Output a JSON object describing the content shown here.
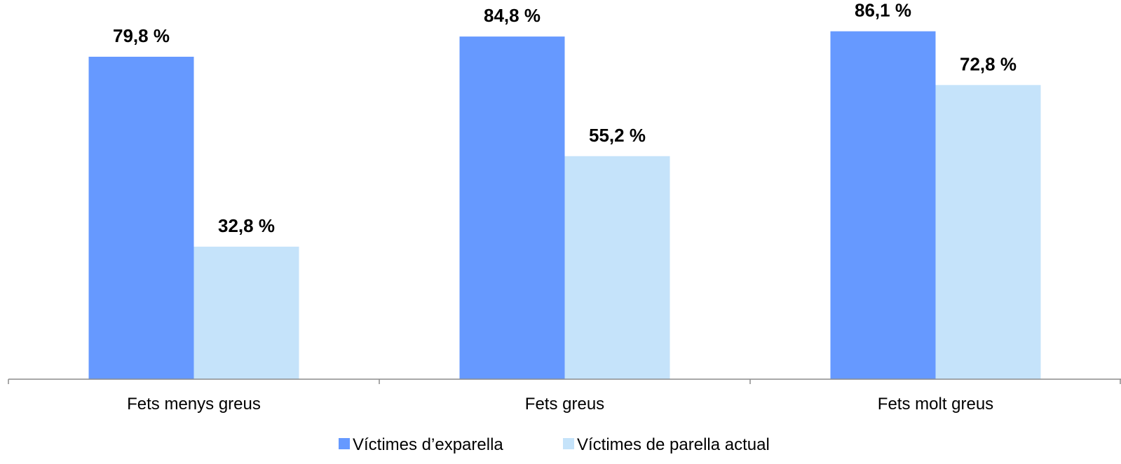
{
  "chart_data": {
    "type": "bar",
    "categories": [
      "Fets menys greus",
      "Fets greus",
      "Fets molt greus"
    ],
    "series": [
      {
        "name": "Víctimes d’exparella",
        "values": [
          79.8,
          84.8,
          86.1
        ],
        "labels": [
          "79,8 %",
          "84,8 %",
          "86,1 %"
        ],
        "color": "#6699FF"
      },
      {
        "name": "Víctimes de parella actual",
        "values": [
          32.8,
          55.2,
          72.8
        ],
        "labels": [
          "32,8 %",
          "55,2 %",
          "72,8 %"
        ],
        "color": "#C5E3FA"
      }
    ],
    "title": "",
    "xlabel": "",
    "ylabel": "",
    "ylim": [
      0,
      100
    ],
    "grid": false,
    "legend": "bottom"
  },
  "colors": {
    "axis": "#8C8C8C",
    "text": "#000000"
  }
}
